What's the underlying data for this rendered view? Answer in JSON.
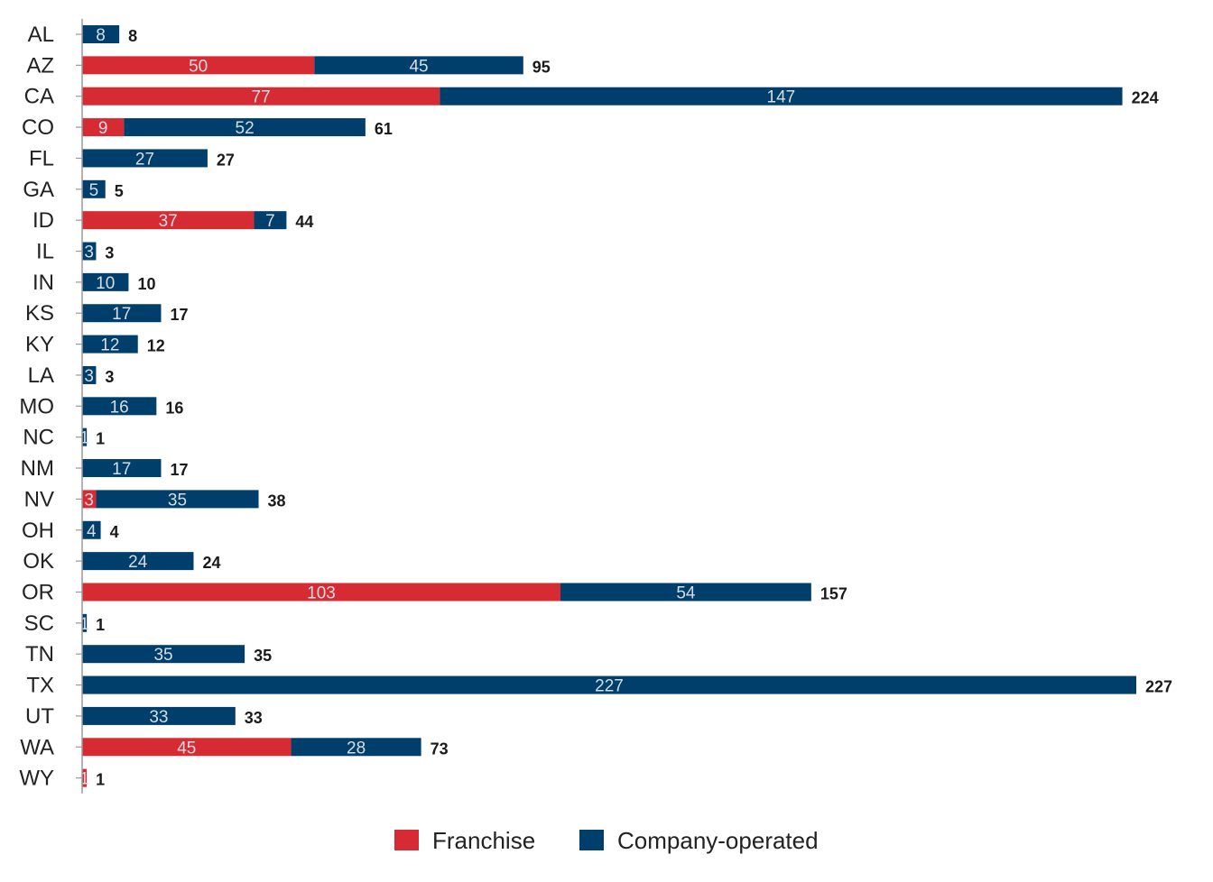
{
  "chart_data": {
    "type": "bar",
    "orientation": "horizontal",
    "stacked": true,
    "title": "",
    "xlabel": "",
    "ylabel": "",
    "xlim": [
      0,
      227
    ],
    "grid": false,
    "legend_position": "bottom",
    "categories": [
      "AL",
      "AZ",
      "CA",
      "CO",
      "FL",
      "GA",
      "ID",
      "IL",
      "IN",
      "KS",
      "KY",
      "LA",
      "MO",
      "NC",
      "NM",
      "NV",
      "OH",
      "OK",
      "OR",
      "SC",
      "TN",
      "TX",
      "UT",
      "WA",
      "WY"
    ],
    "series": [
      {
        "name": "Franchise",
        "color": "#d62b33",
        "values": [
          0,
          50,
          77,
          9,
          0,
          0,
          37,
          0,
          0,
          0,
          0,
          0,
          0,
          0,
          0,
          3,
          0,
          0,
          103,
          0,
          0,
          0,
          0,
          45,
          1
        ]
      },
      {
        "name": "Company-operated",
        "color": "#003f6b",
        "values": [
          8,
          45,
          147,
          52,
          27,
          5,
          7,
          3,
          10,
          17,
          12,
          3,
          16,
          1,
          17,
          35,
          4,
          24,
          54,
          1,
          35,
          227,
          33,
          28,
          0
        ]
      }
    ],
    "totals": [
      8,
      95,
      224,
      61,
      27,
      5,
      44,
      3,
      10,
      17,
      12,
      3,
      16,
      1,
      17,
      38,
      4,
      24,
      157,
      1,
      35,
      227,
      33,
      73,
      1
    ]
  }
}
